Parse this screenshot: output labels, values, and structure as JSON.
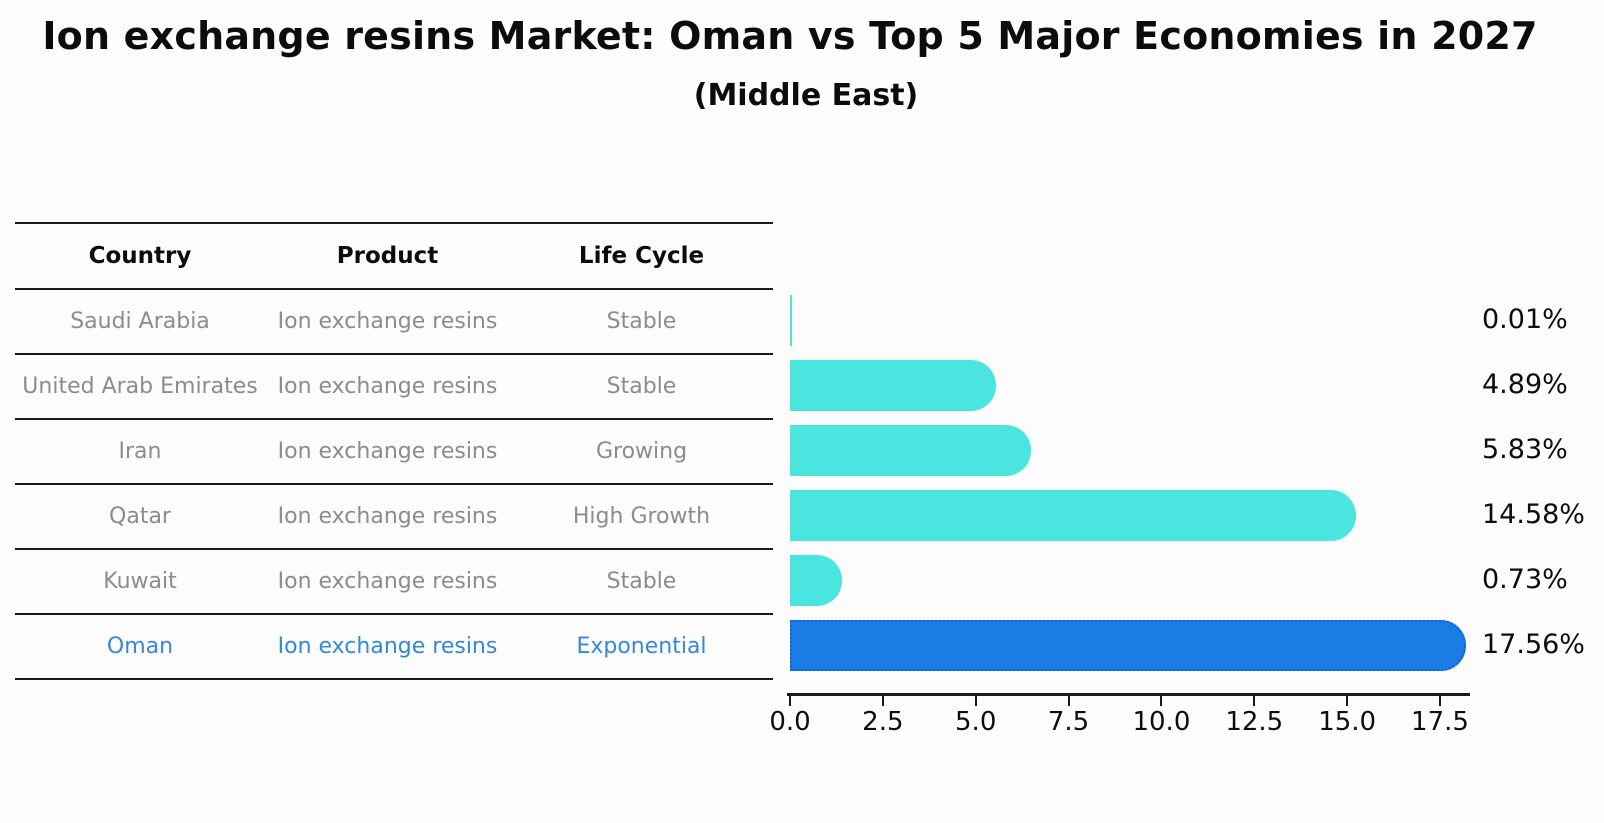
{
  "chart_data": {
    "type": "bar",
    "orientation": "horizontal",
    "title": "Ion exchange resins Market: Oman vs Top 5 Major Economies in 2027",
    "subtitle": "(Middle East)",
    "categories": [
      "Saudi Arabia",
      "United Arab Emirates",
      "Iran",
      "Qatar",
      "Kuwait",
      "Oman"
    ],
    "values": [
      0.01,
      4.89,
      5.83,
      14.58,
      0.73,
      17.56
    ],
    "value_labels": [
      "0.01%",
      "4.89%",
      "5.83%",
      "14.58%",
      "0.73%",
      "17.56%"
    ],
    "highlight_index": 5,
    "x_tick_labels": [
      "0.0",
      "2.5",
      "5.0",
      "7.5",
      "10.0",
      "12.5",
      "15.0",
      "17.5"
    ],
    "x_tick_values": [
      0.0,
      2.5,
      5.0,
      7.5,
      10.0,
      12.5,
      15.0,
      17.5
    ],
    "xlim": [
      0,
      18.3
    ],
    "grid": false,
    "legend": null,
    "bar_color": "#4BE5E0",
    "highlight_bar_color": "#1B7CE5",
    "highlight_border_color": "#0E63D6"
  },
  "table": {
    "headers": [
      "Country",
      "Product",
      "Life Cycle"
    ],
    "rows": [
      {
        "country": "Saudi Arabia",
        "product": "Ion exchange resins",
        "life_cycle": "Stable",
        "highlight": false
      },
      {
        "country": "United Arab Emirates",
        "product": "Ion exchange resins",
        "life_cycle": "Stable",
        "highlight": false
      },
      {
        "country": "Iran",
        "product": "Ion exchange resins",
        "life_cycle": "Growing",
        "highlight": false
      },
      {
        "country": "Qatar",
        "product": "Ion exchange resins",
        "life_cycle": "High Growth",
        "highlight": false
      },
      {
        "country": "Kuwait",
        "product": "Ion exchange resins",
        "life_cycle": "Stable",
        "highlight": false
      },
      {
        "country": "Oman",
        "product": "Ion exchange resins",
        "life_cycle": "Exponential",
        "highlight": true
      }
    ],
    "text_color": "#8c8c8c",
    "highlight_text_color": "#3787d8"
  }
}
